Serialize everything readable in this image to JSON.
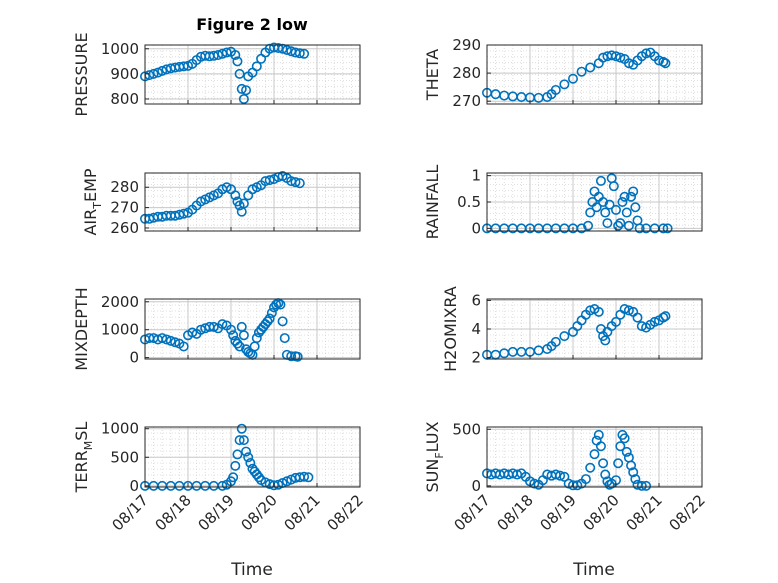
{
  "figure_title": "Figure 2 low",
  "time_label": "Time",
  "marker_color": "#0072BD",
  "chart_data": [
    {
      "type": "scatter",
      "name": "PRESSURE",
      "ylabel": "PRESSURE",
      "ylim": [
        780,
        1015
      ],
      "yticks": [
        800,
        900,
        1000
      ],
      "xlim": [
        "08/17",
        "08/22"
      ],
      "xticks": [
        "08/17",
        "08/18",
        "08/19",
        "08/20",
        "08/21",
        "08/22"
      ],
      "grid": true,
      "points": [
        [
          0,
          890
        ],
        [
          0.1,
          895
        ],
        [
          0.2,
          900
        ],
        [
          0.3,
          905
        ],
        [
          0.4,
          912
        ],
        [
          0.5,
          918
        ],
        [
          0.6,
          922
        ],
        [
          0.7,
          925
        ],
        [
          0.8,
          928
        ],
        [
          0.9,
          930
        ],
        [
          1.0,
          932
        ],
        [
          1.1,
          940
        ],
        [
          1.2,
          955
        ],
        [
          1.3,
          968
        ],
        [
          1.4,
          972
        ],
        [
          1.5,
          970
        ],
        [
          1.6,
          972
        ],
        [
          1.7,
          975
        ],
        [
          1.8,
          980
        ],
        [
          1.9,
          985
        ],
        [
          2.0,
          988
        ],
        [
          2.1,
          975
        ],
        [
          2.15,
          950
        ],
        [
          2.2,
          900
        ],
        [
          2.25,
          840
        ],
        [
          2.3,
          800
        ],
        [
          2.35,
          835
        ],
        [
          2.4,
          890
        ],
        [
          2.5,
          905
        ],
        [
          2.6,
          930
        ],
        [
          2.7,
          960
        ],
        [
          2.8,
          985
        ],
        [
          2.9,
          1000
        ],
        [
          3.0,
          1005
        ],
        [
          3.1,
          1003
        ],
        [
          3.2,
          1000
        ],
        [
          3.3,
          995
        ],
        [
          3.4,
          990
        ],
        [
          3.5,
          985
        ],
        [
          3.6,
          982
        ],
        [
          3.7,
          980
        ]
      ]
    },
    {
      "type": "scatter",
      "name": "THETA",
      "ylabel": "THETA",
      "ylim": [
        269,
        290
      ],
      "yticks": [
        270,
        280,
        290
      ],
      "xlim": [
        "08/17",
        "08/22"
      ],
      "xticks": [
        "08/17",
        "08/18",
        "08/19",
        "08/20",
        "08/21",
        "08/22"
      ],
      "grid": true,
      "points": [
        [
          0,
          273
        ],
        [
          0.2,
          272.5
        ],
        [
          0.4,
          272
        ],
        [
          0.6,
          271.7
        ],
        [
          0.8,
          271.5
        ],
        [
          1.0,
          271.3
        ],
        [
          1.2,
          271.2
        ],
        [
          1.4,
          271.5
        ],
        [
          1.5,
          272.5
        ],
        [
          1.6,
          274
        ],
        [
          1.8,
          276
        ],
        [
          2.0,
          278
        ],
        [
          2.2,
          280.5
        ],
        [
          2.4,
          282
        ],
        [
          2.6,
          283.5
        ],
        [
          2.7,
          285.5
        ],
        [
          2.8,
          286
        ],
        [
          2.9,
          286.3
        ],
        [
          3.0,
          286
        ],
        [
          3.1,
          285.5
        ],
        [
          3.2,
          285
        ],
        [
          3.3,
          283.5
        ],
        [
          3.4,
          283
        ],
        [
          3.5,
          284.5
        ],
        [
          3.6,
          286
        ],
        [
          3.7,
          287
        ],
        [
          3.8,
          287.3
        ],
        [
          3.9,
          286
        ],
        [
          4.0,
          284.5
        ],
        [
          4.1,
          284
        ],
        [
          4.15,
          283.5
        ]
      ]
    },
    {
      "type": "scatter",
      "name": "AIR_TEMP",
      "ylabel": "AIR_TEMP",
      "ylim": [
        258.5,
        287
      ],
      "yticks": [
        260,
        270,
        280
      ],
      "xlim": [
        "08/17",
        "08/22"
      ],
      "xticks": [
        "08/17",
        "08/18",
        "08/19",
        "08/20",
        "08/21",
        "08/22"
      ],
      "grid": true,
      "points": [
        [
          0,
          264.5
        ],
        [
          0.1,
          264.5
        ],
        [
          0.2,
          265
        ],
        [
          0.3,
          265.5
        ],
        [
          0.4,
          265.5
        ],
        [
          0.5,
          266
        ],
        [
          0.6,
          266
        ],
        [
          0.7,
          266
        ],
        [
          0.8,
          266.5
        ],
        [
          0.9,
          267
        ],
        [
          1.0,
          267.5
        ],
        [
          1.1,
          269
        ],
        [
          1.2,
          271
        ],
        [
          1.3,
          273
        ],
        [
          1.4,
          274
        ],
        [
          1.5,
          275
        ],
        [
          1.6,
          276
        ],
        [
          1.7,
          277
        ],
        [
          1.8,
          279
        ],
        [
          1.9,
          280
        ],
        [
          2.0,
          279
        ],
        [
          2.1,
          276
        ],
        [
          2.15,
          273
        ],
        [
          2.2,
          271
        ],
        [
          2.25,
          268
        ],
        [
          2.3,
          272
        ],
        [
          2.4,
          276
        ],
        [
          2.5,
          279
        ],
        [
          2.6,
          280
        ],
        [
          2.7,
          281
        ],
        [
          2.8,
          283
        ],
        [
          2.9,
          283.5
        ],
        [
          3.0,
          284
        ],
        [
          3.1,
          285
        ],
        [
          3.2,
          285.5
        ],
        [
          3.3,
          284.5
        ],
        [
          3.4,
          283
        ],
        [
          3.5,
          282.5
        ],
        [
          3.6,
          282
        ]
      ]
    },
    {
      "type": "scatter",
      "name": "RAINFALL",
      "ylabel": "RAINFALL",
      "ylim": [
        -0.05,
        1.05
      ],
      "yticks": [
        0,
        0.5,
        1
      ],
      "xlim": [
        "08/17",
        "08/22"
      ],
      "xticks": [
        "08/17",
        "08/18",
        "08/19",
        "08/20",
        "08/21",
        "08/22"
      ],
      "grid": true,
      "points": [
        [
          0,
          0
        ],
        [
          0.2,
          0
        ],
        [
          0.4,
          0
        ],
        [
          0.6,
          0
        ],
        [
          0.8,
          0
        ],
        [
          1.0,
          0
        ],
        [
          1.2,
          0
        ],
        [
          1.4,
          0
        ],
        [
          1.6,
          0
        ],
        [
          1.8,
          0
        ],
        [
          2.0,
          0
        ],
        [
          2.2,
          0
        ],
        [
          2.35,
          0.05
        ],
        [
          2.4,
          0.3
        ],
        [
          2.45,
          0.5
        ],
        [
          2.5,
          0.7
        ],
        [
          2.55,
          0.4
        ],
        [
          2.6,
          0.6
        ],
        [
          2.65,
          0.9
        ],
        [
          2.7,
          0.5
        ],
        [
          2.75,
          0.3
        ],
        [
          2.8,
          0.1
        ],
        [
          2.85,
          0.45
        ],
        [
          2.9,
          0.95
        ],
        [
          2.95,
          0.8
        ],
        [
          3.0,
          0.35
        ],
        [
          3.05,
          0.05
        ],
        [
          3.1,
          0.1
        ],
        [
          3.15,
          0.5
        ],
        [
          3.2,
          0.6
        ],
        [
          3.25,
          0.3
        ],
        [
          3.3,
          0.05
        ],
        [
          3.35,
          0.6
        ],
        [
          3.4,
          0.7
        ],
        [
          3.45,
          0.4
        ],
        [
          3.5,
          0.15
        ],
        [
          3.55,
          0
        ],
        [
          3.7,
          0
        ],
        [
          3.9,
          0
        ],
        [
          4.1,
          0
        ],
        [
          4.2,
          0
        ]
      ]
    },
    {
      "type": "scatter",
      "name": "MIXDEPTH",
      "ylabel": "MIXDEPTH",
      "ylim": [
        -50,
        2100
      ],
      "yticks": [
        0,
        1000,
        2000
      ],
      "xlim": [
        "08/17",
        "08/22"
      ],
      "xticks": [
        "08/17",
        "08/18",
        "08/19",
        "08/20",
        "08/21",
        "08/22"
      ],
      "grid": true,
      "points": [
        [
          0,
          650
        ],
        [
          0.1,
          700
        ],
        [
          0.2,
          700
        ],
        [
          0.3,
          650
        ],
        [
          0.4,
          700
        ],
        [
          0.5,
          650
        ],
        [
          0.6,
          600
        ],
        [
          0.7,
          550
        ],
        [
          0.8,
          500
        ],
        [
          0.9,
          400
        ],
        [
          1.0,
          800
        ],
        [
          1.1,
          900
        ],
        [
          1.2,
          850
        ],
        [
          1.3,
          1000
        ],
        [
          1.4,
          1050
        ],
        [
          1.5,
          1100
        ],
        [
          1.6,
          1100
        ],
        [
          1.7,
          1050
        ],
        [
          1.8,
          1200
        ],
        [
          1.9,
          1150
        ],
        [
          2.0,
          1000
        ],
        [
          2.05,
          800
        ],
        [
          2.1,
          600
        ],
        [
          2.15,
          500
        ],
        [
          2.2,
          400
        ],
        [
          2.25,
          1100
        ],
        [
          2.3,
          800
        ],
        [
          2.35,
          300
        ],
        [
          2.4,
          200
        ],
        [
          2.45,
          150
        ],
        [
          2.5,
          100
        ],
        [
          2.55,
          400
        ],
        [
          2.6,
          700
        ],
        [
          2.65,
          900
        ],
        [
          2.7,
          1000
        ],
        [
          2.75,
          1100
        ],
        [
          2.8,
          1200
        ],
        [
          2.85,
          1300
        ],
        [
          2.9,
          1400
        ],
        [
          2.95,
          1600
        ],
        [
          3.0,
          1800
        ],
        [
          3.05,
          1900
        ],
        [
          3.1,
          1950
        ],
        [
          3.15,
          1900
        ],
        [
          3.2,
          1300
        ],
        [
          3.25,
          700
        ],
        [
          3.3,
          100
        ],
        [
          3.4,
          50
        ],
        [
          3.5,
          50
        ],
        [
          3.55,
          30
        ]
      ]
    },
    {
      "type": "scatter",
      "name": "H2OMIXRA",
      "ylabel": "H2OMIXRA",
      "ylim": [
        1.9,
        6.1
      ],
      "yticks": [
        2,
        4,
        6
      ],
      "xlim": [
        "08/17",
        "08/22"
      ],
      "xticks": [
        "08/17",
        "08/18",
        "08/19",
        "08/20",
        "08/21",
        "08/22"
      ],
      "grid": true,
      "points": [
        [
          0,
          2.2
        ],
        [
          0.2,
          2.2
        ],
        [
          0.4,
          2.3
        ],
        [
          0.6,
          2.4
        ],
        [
          0.8,
          2.4
        ],
        [
          1.0,
          2.4
        ],
        [
          1.2,
          2.5
        ],
        [
          1.4,
          2.6
        ],
        [
          1.5,
          2.8
        ],
        [
          1.6,
          3.1
        ],
        [
          1.8,
          3.5
        ],
        [
          2.0,
          3.8
        ],
        [
          2.1,
          4.2
        ],
        [
          2.2,
          4.6
        ],
        [
          2.3,
          5.0
        ],
        [
          2.4,
          5.3
        ],
        [
          2.5,
          5.4
        ],
        [
          2.6,
          5.2
        ],
        [
          2.65,
          4.0
        ],
        [
          2.7,
          3.5
        ],
        [
          2.75,
          3.2
        ],
        [
          2.8,
          3.8
        ],
        [
          2.9,
          4.2
        ],
        [
          3.0,
          4.5
        ],
        [
          3.1,
          5.0
        ],
        [
          3.2,
          5.4
        ],
        [
          3.3,
          5.3
        ],
        [
          3.4,
          5.2
        ],
        [
          3.5,
          4.8
        ],
        [
          3.6,
          4.2
        ],
        [
          3.7,
          4.1
        ],
        [
          3.8,
          4.3
        ],
        [
          3.9,
          4.5
        ],
        [
          4.0,
          4.6
        ],
        [
          4.1,
          4.8
        ],
        [
          4.15,
          4.9
        ]
      ]
    },
    {
      "type": "scatter",
      "name": "TERR_MSL",
      "ylabel": "TERR_MSL",
      "ylim": [
        -20,
        1030
      ],
      "yticks": [
        0,
        500,
        1000
      ],
      "xlim": [
        "08/17",
        "08/22"
      ],
      "xticks": [
        "08/17",
        "08/18",
        "08/19",
        "08/20",
        "08/21",
        "08/22"
      ],
      "grid": true,
      "points": [
        [
          0,
          0
        ],
        [
          0.2,
          0
        ],
        [
          0.4,
          0
        ],
        [
          0.6,
          0
        ],
        [
          0.8,
          0
        ],
        [
          1.0,
          0
        ],
        [
          1.2,
          0
        ],
        [
          1.4,
          0
        ],
        [
          1.6,
          0
        ],
        [
          1.8,
          0
        ],
        [
          1.9,
          20
        ],
        [
          2.0,
          80
        ],
        [
          2.05,
          150
        ],
        [
          2.1,
          350
        ],
        [
          2.15,
          550
        ],
        [
          2.2,
          800
        ],
        [
          2.25,
          1000
        ],
        [
          2.3,
          800
        ],
        [
          2.35,
          600
        ],
        [
          2.4,
          500
        ],
        [
          2.45,
          400
        ],
        [
          2.5,
          300
        ],
        [
          2.55,
          250
        ],
        [
          2.6,
          200
        ],
        [
          2.65,
          150
        ],
        [
          2.7,
          100
        ],
        [
          2.8,
          60
        ],
        [
          2.9,
          30
        ],
        [
          3.0,
          10
        ],
        [
          3.1,
          20
        ],
        [
          3.2,
          50
        ],
        [
          3.3,
          80
        ],
        [
          3.4,
          110
        ],
        [
          3.5,
          140
        ],
        [
          3.6,
          150
        ],
        [
          3.7,
          160
        ],
        [
          3.8,
          150
        ]
      ]
    },
    {
      "type": "scatter",
      "name": "SUN_FLUX",
      "ylabel": "SUN_FLUX",
      "ylim": [
        -10,
        520
      ],
      "yticks": [
        0,
        500
      ],
      "xlim": [
        "08/17",
        "08/22"
      ],
      "xticks": [
        "08/17",
        "08/18",
        "08/19",
        "08/20",
        "08/21",
        "08/22"
      ],
      "grid": true,
      "points": [
        [
          0,
          110
        ],
        [
          0.1,
          100
        ],
        [
          0.2,
          110
        ],
        [
          0.3,
          100
        ],
        [
          0.4,
          110
        ],
        [
          0.5,
          100
        ],
        [
          0.6,
          110
        ],
        [
          0.7,
          100
        ],
        [
          0.8,
          110
        ],
        [
          0.9,
          80
        ],
        [
          1.0,
          40
        ],
        [
          1.1,
          20
        ],
        [
          1.2,
          10
        ],
        [
          1.3,
          50
        ],
        [
          1.4,
          100
        ],
        [
          1.5,
          90
        ],
        [
          1.6,
          100
        ],
        [
          1.7,
          90
        ],
        [
          1.8,
          80
        ],
        [
          1.9,
          20
        ],
        [
          2.0,
          5
        ],
        [
          2.1,
          5
        ],
        [
          2.2,
          20
        ],
        [
          2.3,
          60
        ],
        [
          2.4,
          160
        ],
        [
          2.5,
          280
        ],
        [
          2.55,
          400
        ],
        [
          2.6,
          450
        ],
        [
          2.65,
          350
        ],
        [
          2.7,
          200
        ],
        [
          2.75,
          100
        ],
        [
          2.8,
          40
        ],
        [
          2.85,
          10
        ],
        [
          2.9,
          20
        ],
        [
          3.0,
          50
        ],
        [
          3.05,
          200
        ],
        [
          3.1,
          350
        ],
        [
          3.15,
          450
        ],
        [
          3.2,
          420
        ],
        [
          3.25,
          300
        ],
        [
          3.3,
          250
        ],
        [
          3.35,
          180
        ],
        [
          3.4,
          120
        ],
        [
          3.45,
          60
        ],
        [
          3.5,
          10
        ],
        [
          3.6,
          0
        ],
        [
          3.7,
          0
        ]
      ]
    }
  ]
}
